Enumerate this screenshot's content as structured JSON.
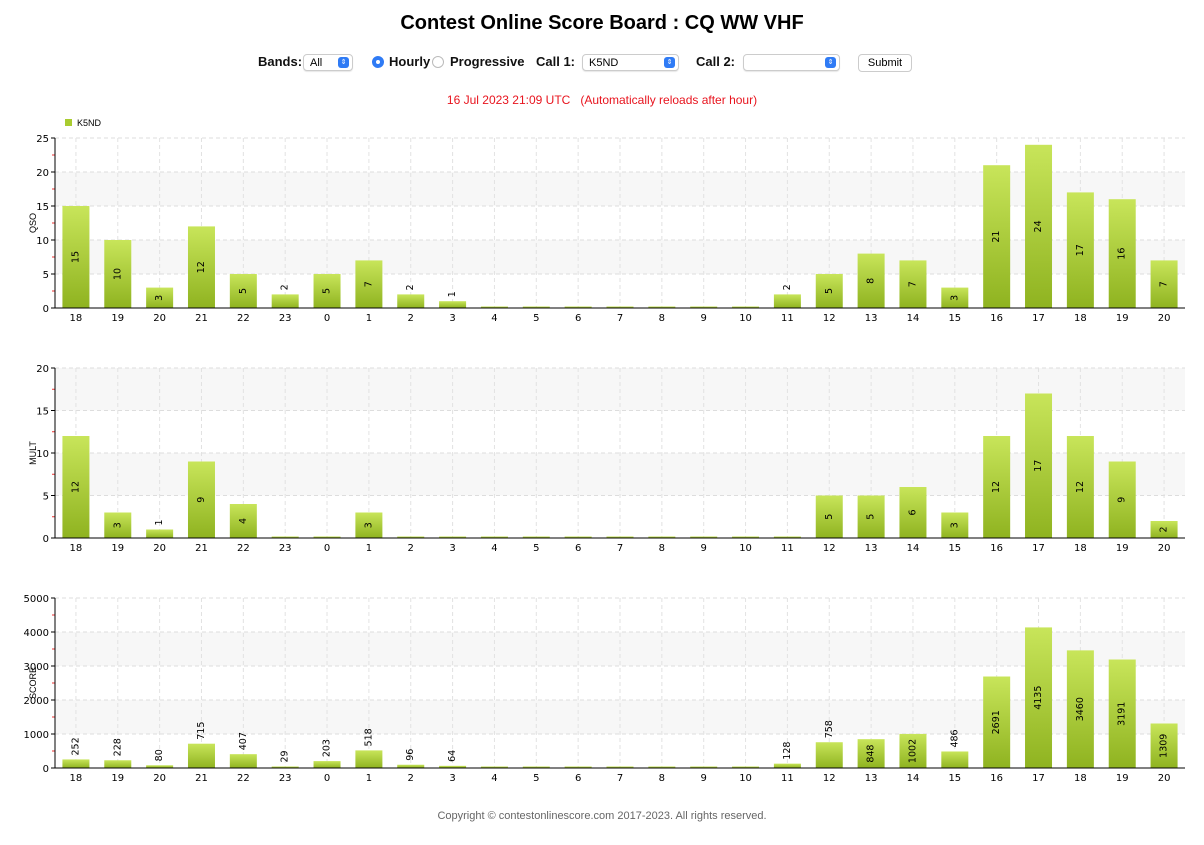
{
  "title": "Contest Online Score Board : CQ WW VHF",
  "controls": {
    "bands_label": "Bands:",
    "bands_value": "All",
    "hourly_label": "Hourly",
    "progressive_label": "Progressive",
    "mode_selected": "Hourly",
    "call1_label": "Call 1:",
    "call1_value": "K5ND",
    "call2_label": "Call 2:",
    "call2_value": "",
    "submit_label": "Submit"
  },
  "status": "16 Jul 2023 21:09 UTC   (Automatically reloads after hour)",
  "footer": "Copyright © contestonlinescore.com 2017-2023. All rights reserved.",
  "colors": {
    "bar_top": "#c8e55a",
    "bar_bottom": "#8fb320",
    "status": "#e8141e"
  },
  "chart_data": [
    {
      "type": "bar",
      "title": "",
      "legend": [
        "K5ND"
      ],
      "legend_position": "top-left",
      "ylabel": "QSO",
      "ylim": [
        0,
        25
      ],
      "yticks": [
        0,
        5,
        10,
        15,
        20,
        25
      ],
      "categories": [
        "18",
        "19",
        "20",
        "21",
        "22",
        "23",
        "0",
        "1",
        "2",
        "3",
        "4",
        "5",
        "6",
        "7",
        "8",
        "9",
        "10",
        "11",
        "12",
        "13",
        "14",
        "15",
        "16",
        "17",
        "18",
        "19",
        "20"
      ],
      "values": [
        15,
        10,
        3,
        12,
        5,
        2,
        5,
        7,
        2,
        1,
        0,
        0,
        0,
        0,
        0,
        0,
        0,
        2,
        5,
        8,
        7,
        3,
        21,
        24,
        17,
        16,
        7
      ]
    },
    {
      "type": "bar",
      "ylabel": "MULT",
      "ylim": [
        0,
        20
      ],
      "yticks": [
        0,
        5,
        10,
        15,
        20
      ],
      "categories": [
        "18",
        "19",
        "20",
        "21",
        "22",
        "23",
        "0",
        "1",
        "2",
        "3",
        "4",
        "5",
        "6",
        "7",
        "8",
        "9",
        "10",
        "11",
        "12",
        "13",
        "14",
        "15",
        "16",
        "17",
        "18",
        "19",
        "20"
      ],
      "values": [
        12,
        3,
        1,
        9,
        4,
        0,
        0,
        3,
        0,
        0,
        0,
        0,
        0,
        0,
        0,
        0,
        0,
        0,
        5,
        5,
        6,
        3,
        12,
        17,
        12,
        9,
        2
      ]
    },
    {
      "type": "bar",
      "ylabel": "SCORE",
      "ylim": [
        0,
        5000
      ],
      "yticks": [
        0,
        1000,
        2000,
        3000,
        4000,
        5000
      ],
      "categories": [
        "18",
        "19",
        "20",
        "21",
        "22",
        "23",
        "0",
        "1",
        "2",
        "3",
        "4",
        "5",
        "6",
        "7",
        "8",
        "9",
        "10",
        "11",
        "12",
        "13",
        "14",
        "15",
        "16",
        "17",
        "18",
        "19",
        "20"
      ],
      "values": [
        252,
        228,
        80,
        715,
        407,
        29,
        203,
        518,
        96,
        64,
        0,
        0,
        0,
        0,
        0,
        0,
        0,
        128,
        758,
        848,
        1002,
        486,
        2691,
        4135,
        3460,
        3191,
        1309
      ]
    }
  ]
}
